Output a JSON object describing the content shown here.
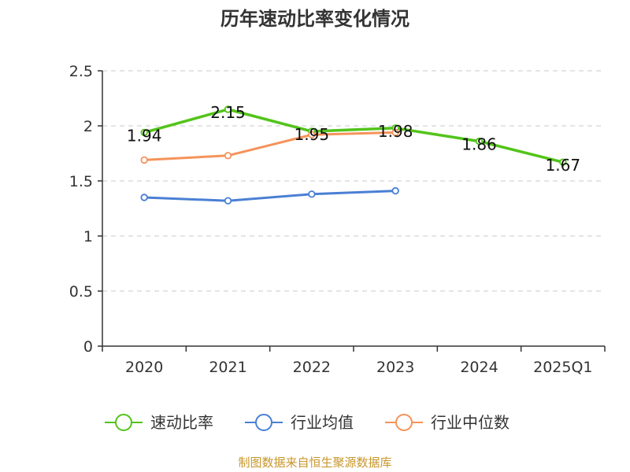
{
  "chart_data": {
    "type": "line",
    "title": "历年速动比率变化情况",
    "categories": [
      "2020",
      "2021",
      "2022",
      "2023",
      "2024",
      "2025Q1"
    ],
    "ylim": [
      0,
      2.5
    ],
    "yticks": [
      "0",
      "0.5",
      "1",
      "1.5",
      "2",
      "2.5"
    ],
    "grid": true,
    "legend_position": "bottom",
    "series": [
      {
        "name": "速动比率",
        "color": "#52c41a",
        "values": [
          1.94,
          2.15,
          1.95,
          1.98,
          1.86,
          1.67
        ],
        "labels": [
          "1.94",
          "2.15",
          "1.95",
          "1.98",
          "1.86",
          "1.67"
        ]
      },
      {
        "name": "行业均值",
        "color": "#4a7fd4",
        "values": [
          1.35,
          1.32,
          1.38,
          1.41,
          null,
          null
        ]
      },
      {
        "name": "行业中位数",
        "color": "#f5935a",
        "values": [
          1.69,
          1.73,
          1.92,
          1.94,
          null,
          null
        ]
      }
    ]
  },
  "source": "制图数据来自恒生聚源数据库"
}
